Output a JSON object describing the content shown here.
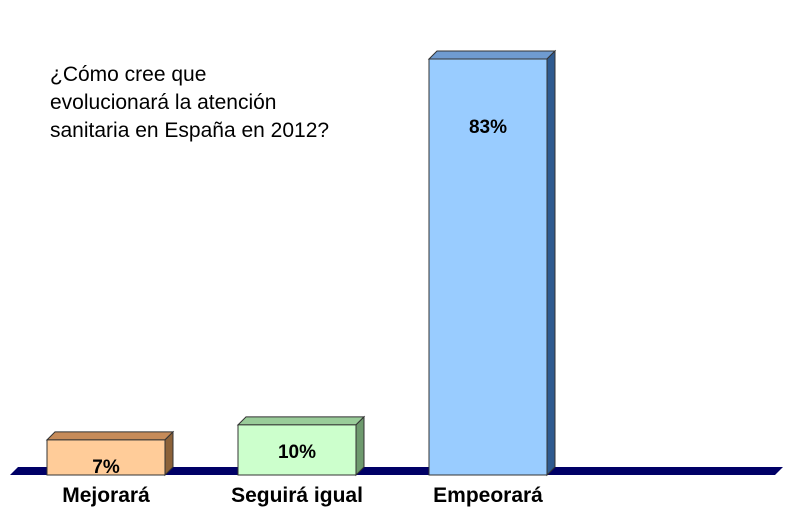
{
  "chart_data": {
    "type": "bar",
    "title_lines": [
      "¿Cómo cree que",
      "evolucionará la atención",
      "sanitaria en España en 2012?"
    ],
    "categories": [
      "Mejorará",
      "Seguirá igual",
      "Empeorará"
    ],
    "values": [
      7,
      10,
      83
    ],
    "value_labels": [
      "7%",
      "10%",
      "83%"
    ],
    "xlabel": "",
    "ylabel": "",
    "ylim": [
      0,
      83
    ],
    "grid": false,
    "legend": "none",
    "style": "3d",
    "colors": {
      "bars": [
        {
          "front": "#FFCC99",
          "side": "#8C6239",
          "top": "#C68B59"
        },
        {
          "front": "#CCFFCC",
          "side": "#6E9A6E",
          "top": "#99CC99"
        },
        {
          "front": "#99CCFF",
          "side": "#2F5A8F",
          "top": "#6F9BD0"
        }
      ],
      "floor": "#000066",
      "outline": "#333333"
    }
  }
}
